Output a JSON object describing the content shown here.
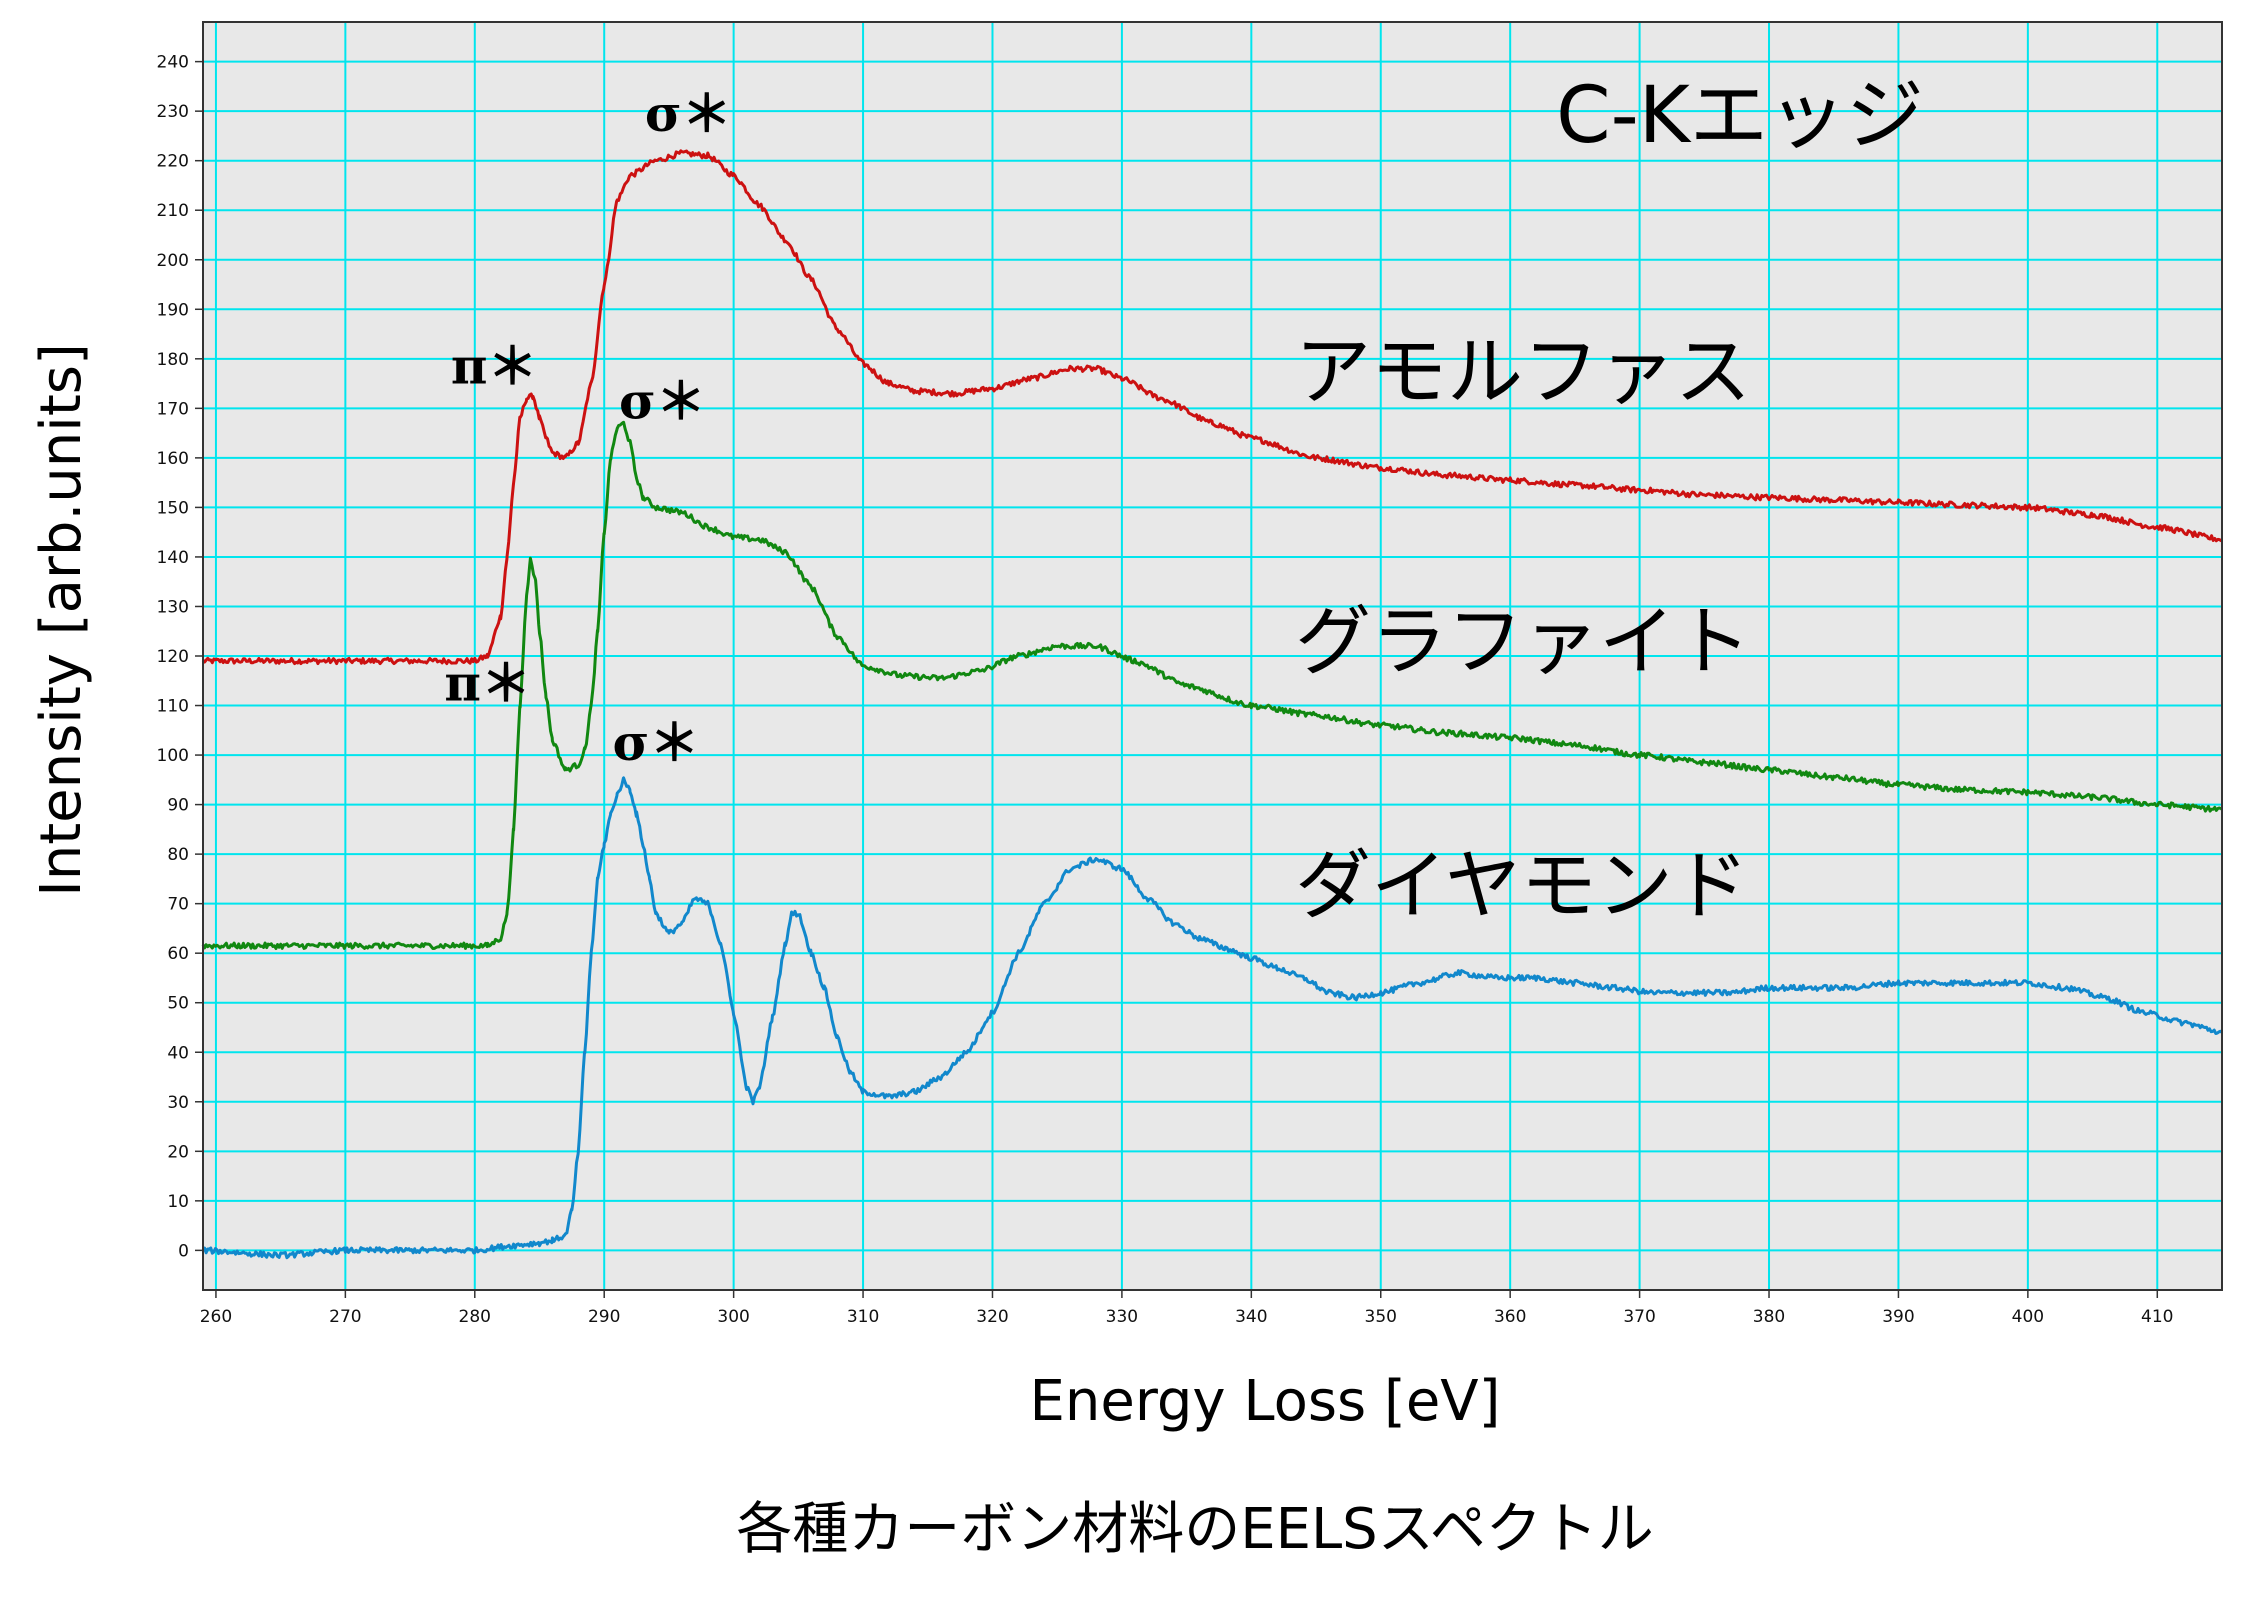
{
  "chart_data": {
    "type": "line",
    "caption": "各種カーボン材料のEELSスペクトル",
    "edge_label": "C-Kエッジ",
    "xlabel": "Energy Loss [eV]",
    "ylabel": "Intensity [arb.units]",
    "xlim": [
      259,
      415
    ],
    "ylim": [
      -8,
      248
    ],
    "x_ticks": [
      260,
      270,
      280,
      290,
      300,
      310,
      320,
      330,
      340,
      350,
      360,
      370,
      380,
      390,
      400,
      410
    ],
    "y_ticks": [
      0,
      10,
      20,
      30,
      40,
      50,
      60,
      70,
      80,
      90,
      100,
      110,
      120,
      130,
      140,
      150,
      160,
      170,
      180,
      190,
      200,
      210,
      220,
      230,
      240
    ],
    "grid": true,
    "colors": {
      "plot_bg": "#e8e8e8",
      "grid": "#00e5ee",
      "frame": "#333333"
    },
    "series": [
      {
        "name": "アモルファス",
        "color": "#cc1111",
        "points": [
          [
            259,
            119
          ],
          [
            280,
            119
          ],
          [
            281,
            120
          ],
          [
            282,
            128
          ],
          [
            282.5,
            140
          ],
          [
            283,
            155
          ],
          [
            283.5,
            168
          ],
          [
            284,
            172
          ],
          [
            284.5,
            172.5
          ],
          [
            285,
            168
          ],
          [
            285.5,
            164
          ],
          [
            286,
            161
          ],
          [
            287,
            160
          ],
          [
            288,
            163
          ],
          [
            289,
            175
          ],
          [
            290,
            195
          ],
          [
            291,
            212
          ],
          [
            292,
            217
          ],
          [
            294,
            220
          ],
          [
            296,
            221.5
          ],
          [
            298,
            221
          ],
          [
            300,
            217
          ],
          [
            302,
            211
          ],
          [
            304,
            204
          ],
          [
            306,
            196
          ],
          [
            308,
            186
          ],
          [
            310,
            179
          ],
          [
            312,
            175
          ],
          [
            314,
            173.5
          ],
          [
            317,
            173
          ],
          [
            320,
            174
          ],
          [
            323,
            176
          ],
          [
            326,
            178
          ],
          [
            328,
            178
          ],
          [
            330,
            176
          ],
          [
            333,
            172
          ],
          [
            337,
            167
          ],
          [
            340,
            164
          ],
          [
            345,
            160
          ],
          [
            350,
            158
          ],
          [
            355,
            156.5
          ],
          [
            360,
            155.5
          ],
          [
            365,
            154.5
          ],
          [
            370,
            153.5
          ],
          [
            375,
            152.5
          ],
          [
            380,
            152
          ],
          [
            385,
            151.5
          ],
          [
            390,
            151
          ],
          [
            395,
            150.5
          ],
          [
            400,
            150
          ],
          [
            405,
            148.5
          ],
          [
            410,
            146
          ],
          [
            415,
            143.5
          ]
        ]
      },
      {
        "name": "グラファイト",
        "color": "#118811",
        "points": [
          [
            259,
            61.5
          ],
          [
            281,
            61.5
          ],
          [
            282,
            63
          ],
          [
            282.5,
            68
          ],
          [
            283,
            85
          ],
          [
            283.5,
            110
          ],
          [
            284,
            132
          ],
          [
            284.3,
            140
          ],
          [
            284.7,
            135
          ],
          [
            285,
            125
          ],
          [
            285.5,
            112
          ],
          [
            286,
            103
          ],
          [
            287,
            97
          ],
          [
            288,
            98
          ],
          [
            288.5,
            101
          ],
          [
            289,
            110
          ],
          [
            289.5,
            125
          ],
          [
            290,
            145
          ],
          [
            290.5,
            160
          ],
          [
            291,
            166
          ],
          [
            291.5,
            167
          ],
          [
            292,
            163
          ],
          [
            292.5,
            156
          ],
          [
            293,
            152
          ],
          [
            294,
            150
          ],
          [
            296,
            149
          ],
          [
            298,
            146
          ],
          [
            300,
            144
          ],
          [
            302,
            143.5
          ],
          [
            304,
            141
          ],
          [
            306,
            134
          ],
          [
            308,
            124
          ],
          [
            310,
            118
          ],
          [
            313,
            116
          ],
          [
            316,
            115.5
          ],
          [
            319,
            117
          ],
          [
            322,
            120
          ],
          [
            325,
            122
          ],
          [
            328,
            122
          ],
          [
            331,
            119
          ],
          [
            335,
            114
          ],
          [
            340,
            110
          ],
          [
            345,
            108
          ],
          [
            350,
            106
          ],
          [
            355,
            104.5
          ],
          [
            360,
            103.5
          ],
          [
            365,
            102
          ],
          [
            370,
            100
          ],
          [
            375,
            98.5
          ],
          [
            380,
            97
          ],
          [
            385,
            95.5
          ],
          [
            390,
            94
          ],
          [
            395,
            93
          ],
          [
            400,
            92.5
          ],
          [
            405,
            91.5
          ],
          [
            410,
            90
          ],
          [
            415,
            89
          ]
        ]
      },
      {
        "name": "ダイヤモンド",
        "color": "#1188cc",
        "points": [
          [
            259,
            0
          ],
          [
            265,
            -1
          ],
          [
            270,
            0
          ],
          [
            275,
            0
          ],
          [
            280,
            0
          ],
          [
            283,
            1
          ],
          [
            285,
            1.5
          ],
          [
            286,
            2
          ],
          [
            287,
            3
          ],
          [
            287.5,
            8
          ],
          [
            288,
            20
          ],
          [
            288.5,
            40
          ],
          [
            289,
            60
          ],
          [
            289.5,
            75
          ],
          [
            290,
            82
          ],
          [
            290.5,
            88
          ],
          [
            291,
            92
          ],
          [
            291.5,
            95
          ],
          [
            292,
            93
          ],
          [
            292.5,
            88
          ],
          [
            293,
            82
          ],
          [
            293.5,
            75
          ],
          [
            294,
            68
          ],
          [
            295,
            64
          ],
          [
            296,
            66
          ],
          [
            297,
            71
          ],
          [
            298,
            70
          ],
          [
            299,
            62
          ],
          [
            300,
            48
          ],
          [
            301,
            33
          ],
          [
            301.5,
            30
          ],
          [
            302,
            33
          ],
          [
            303,
            47
          ],
          [
            304,
            62
          ],
          [
            304.5,
            68
          ],
          [
            305,
            68
          ],
          [
            306,
            60
          ],
          [
            307,
            53
          ],
          [
            308,
            43
          ],
          [
            309,
            36
          ],
          [
            310,
            32
          ],
          [
            312,
            31
          ],
          [
            314,
            32
          ],
          [
            316,
            35
          ],
          [
            318,
            40
          ],
          [
            320,
            48
          ],
          [
            322,
            60
          ],
          [
            324,
            70
          ],
          [
            326,
            77
          ],
          [
            328,
            79
          ],
          [
            330,
            77
          ],
          [
            332,
            71
          ],
          [
            334,
            66
          ],
          [
            336,
            63
          ],
          [
            338,
            61
          ],
          [
            340,
            59
          ],
          [
            342,
            57
          ],
          [
            344,
            55
          ],
          [
            346,
            52
          ],
          [
            348,
            51
          ],
          [
            350,
            52
          ],
          [
            353,
            54
          ],
          [
            356,
            56
          ],
          [
            359,
            55
          ],
          [
            362,
            55
          ],
          [
            365,
            54
          ],
          [
            368,
            53
          ],
          [
            371,
            52
          ],
          [
            374,
            52
          ],
          [
            377,
            52
          ],
          [
            380,
            53
          ],
          [
            383,
            53
          ],
          [
            386,
            53
          ],
          [
            390,
            54
          ],
          [
            395,
            54
          ],
          [
            400,
            54
          ],
          [
            403,
            53
          ],
          [
            406,
            51
          ],
          [
            409,
            48
          ],
          [
            412,
            46
          ],
          [
            415,
            44
          ]
        ]
      }
    ],
    "peak_labels": [
      {
        "text": "σ＊",
        "x": 296.5,
        "y": 226
      },
      {
        "text": "π＊",
        "x": 281.5,
        "y": 175
      },
      {
        "text": "σ＊",
        "x": 294.5,
        "y": 168
      },
      {
        "text": "π＊",
        "x": 281,
        "y": 111
      },
      {
        "text": "σ＊",
        "x": 294,
        "y": 99
      }
    ]
  }
}
